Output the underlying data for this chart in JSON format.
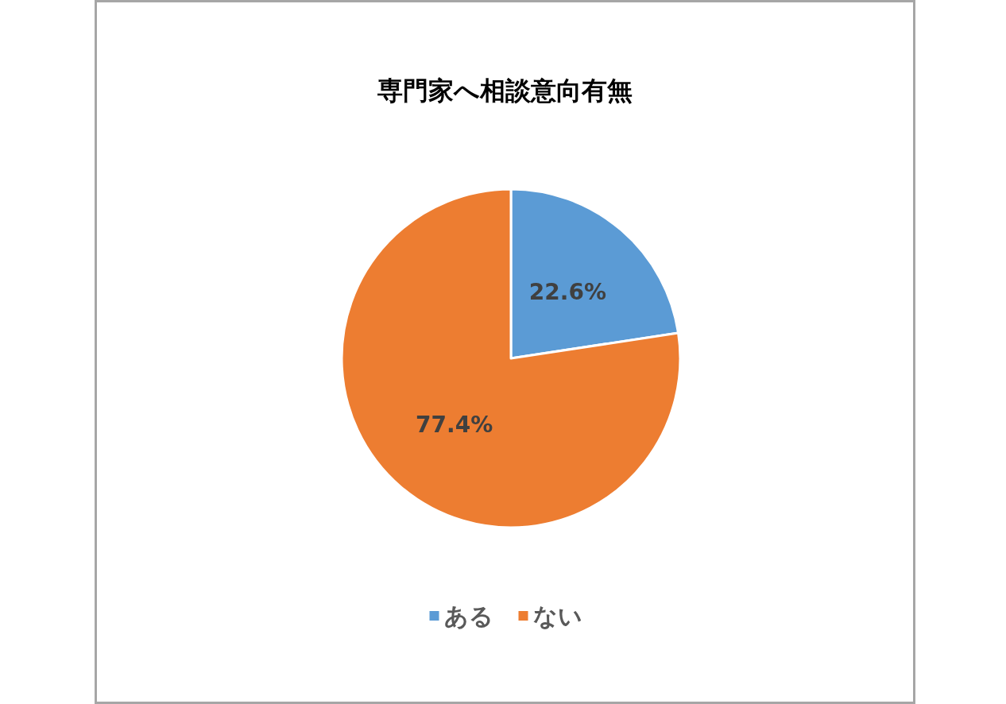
{
  "chart_data": {
    "type": "pie",
    "title": "専門家へ相談意向有無",
    "categories": [
      "ある",
      "ない"
    ],
    "values": [
      22.6,
      77.4
    ],
    "colors": [
      "#5b9bd5",
      "#ed7d31"
    ],
    "value_labels": [
      "22.6%",
      "77.4%"
    ],
    "legend": "bottom"
  }
}
